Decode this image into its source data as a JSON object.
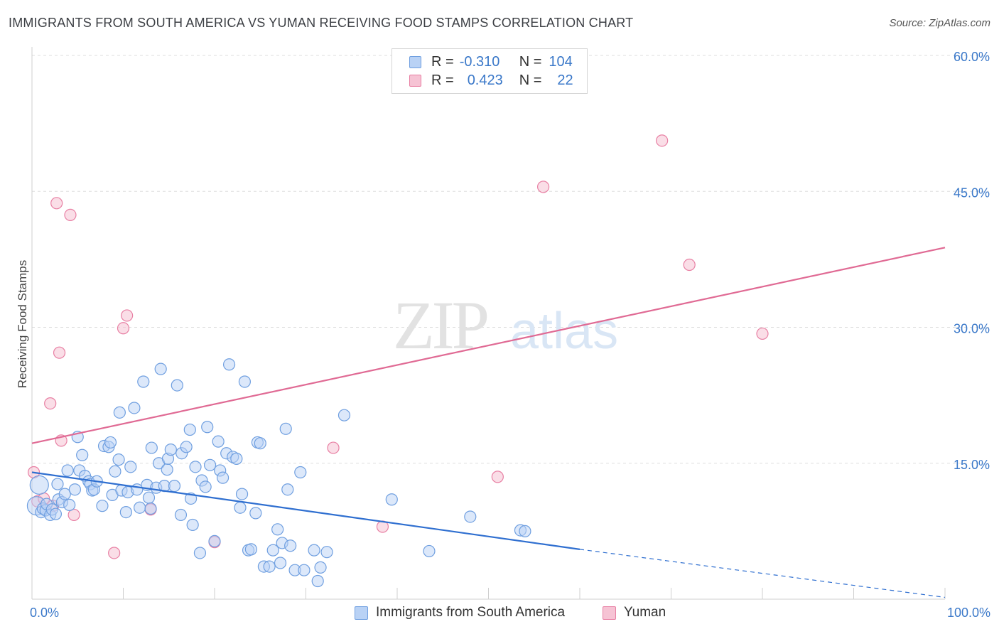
{
  "title": "IMMIGRANTS FROM SOUTH AMERICA VS YUMAN RECEIVING FOOD STAMPS CORRELATION CHART",
  "source": "Source: ZipAtlas.com",
  "watermark": {
    "zip": "ZIP",
    "atlas": "atlas"
  },
  "colors": {
    "blue": "#6f9fe0",
    "blue_fill": "#b9d2f5",
    "blue_line": "#2f6fd0",
    "pink": "#e87fa3",
    "pink_fill": "#f6c3d4",
    "pink_line": "#e06a94",
    "axis_text": "#3a78c9",
    "grid": "#dddddd"
  },
  "legend": {
    "rows": [
      {
        "r_label": "R =",
        "r_value": "-0.310",
        "n_label": "N =",
        "n_value": "104"
      },
      {
        "r_label": "R =",
        "r_value": "0.423",
        "n_label": "N =",
        "n_value": "22"
      }
    ]
  },
  "bottom_legend": [
    "Immigrants from South America",
    "Yuman"
  ],
  "chart_data": {
    "type": "scatter",
    "title": "IMMIGRANTS FROM SOUTH AMERICA VS YUMAN RECEIVING FOOD STAMPS CORRELATION CHART",
    "xlabel": "",
    "ylabel": "Receiving Food Stamps",
    "xlim": [
      0,
      100
    ],
    "ylim": [
      0,
      60
    ],
    "x_tick_labels": [
      "0.0%",
      "100.0%"
    ],
    "y_ticks": [
      15,
      30,
      45,
      60
    ],
    "y_tick_labels": [
      "15.0%",
      "30.0%",
      "45.0%",
      "60.0%"
    ],
    "grid": true,
    "legend_position": "top-center",
    "series": [
      {
        "name": "Immigrants from South America",
        "r": -0.31,
        "n": 104,
        "trend": {
          "x0": 0,
          "y0": 14.0,
          "x1": 60,
          "y1": 5.5,
          "dash_to_x": 100,
          "dash_to_y": 0.2
        },
        "points": [
          [
            0.5,
            10.3
          ],
          [
            0.8,
            12.6
          ],
          [
            1.0,
            9.6
          ],
          [
            1.2,
            10.0
          ],
          [
            1.5,
            9.8
          ],
          [
            1.6,
            10.5
          ],
          [
            2.0,
            9.3
          ],
          [
            2.2,
            9.9
          ],
          [
            2.6,
            9.4
          ],
          [
            2.8,
            12.7
          ],
          [
            2.9,
            11.0
          ],
          [
            3.3,
            10.7
          ],
          [
            3.6,
            11.6
          ],
          [
            3.9,
            14.2
          ],
          [
            4.1,
            10.4
          ],
          [
            4.7,
            12.1
          ],
          [
            5.0,
            17.9
          ],
          [
            5.2,
            14.2
          ],
          [
            5.5,
            15.9
          ],
          [
            5.8,
            13.6
          ],
          [
            6.2,
            13.0
          ],
          [
            6.4,
            12.7
          ],
          [
            6.6,
            12.0
          ],
          [
            6.8,
            12.1
          ],
          [
            7.1,
            13.0
          ],
          [
            7.7,
            10.3
          ],
          [
            7.9,
            16.9
          ],
          [
            8.4,
            16.8
          ],
          [
            8.6,
            17.3
          ],
          [
            8.8,
            11.5
          ],
          [
            9.1,
            14.1
          ],
          [
            9.5,
            15.4
          ],
          [
            9.6,
            20.6
          ],
          [
            9.8,
            12.0
          ],
          [
            10.3,
            9.6
          ],
          [
            10.5,
            11.8
          ],
          [
            10.8,
            14.6
          ],
          [
            11.2,
            21.1
          ],
          [
            11.5,
            12.1
          ],
          [
            11.8,
            10.1
          ],
          [
            12.2,
            24.0
          ],
          [
            12.6,
            12.6
          ],
          [
            12.8,
            11.2
          ],
          [
            13.0,
            10.0
          ],
          [
            13.1,
            16.7
          ],
          [
            13.6,
            12.3
          ],
          [
            13.9,
            15.0
          ],
          [
            14.1,
            25.4
          ],
          [
            14.5,
            12.5
          ],
          [
            14.8,
            14.3
          ],
          [
            14.9,
            15.5
          ],
          [
            15.2,
            16.5
          ],
          [
            15.6,
            12.5
          ],
          [
            15.9,
            23.6
          ],
          [
            16.3,
            9.3
          ],
          [
            16.4,
            16.1
          ],
          [
            16.9,
            16.8
          ],
          [
            17.3,
            18.7
          ],
          [
            17.4,
            11.1
          ],
          [
            17.6,
            8.2
          ],
          [
            17.9,
            14.6
          ],
          [
            18.4,
            5.1
          ],
          [
            18.6,
            13.1
          ],
          [
            19.0,
            12.4
          ],
          [
            19.2,
            19.0
          ],
          [
            19.5,
            14.8
          ],
          [
            20.0,
            6.4
          ],
          [
            20.4,
            17.4
          ],
          [
            20.6,
            14.2
          ],
          [
            20.9,
            13.4
          ],
          [
            21.3,
            16.1
          ],
          [
            21.6,
            25.9
          ],
          [
            22.0,
            15.7
          ],
          [
            22.4,
            15.5
          ],
          [
            22.8,
            10.1
          ],
          [
            23.0,
            11.6
          ],
          [
            23.3,
            24.0
          ],
          [
            23.7,
            5.4
          ],
          [
            24.0,
            5.5
          ],
          [
            24.5,
            9.5
          ],
          [
            24.7,
            17.3
          ],
          [
            25.0,
            17.2
          ],
          [
            25.4,
            3.6
          ],
          [
            26.0,
            3.6
          ],
          [
            26.4,
            5.4
          ],
          [
            26.9,
            7.7
          ],
          [
            27.2,
            4.0
          ],
          [
            27.4,
            6.2
          ],
          [
            27.8,
            18.8
          ],
          [
            28.0,
            12.1
          ],
          [
            28.3,
            5.9
          ],
          [
            28.8,
            3.2
          ],
          [
            29.4,
            14.0
          ],
          [
            29.8,
            3.2
          ],
          [
            30.9,
            5.4
          ],
          [
            31.3,
            2.0
          ],
          [
            31.6,
            3.5
          ],
          [
            32.3,
            5.2
          ],
          [
            34.2,
            20.3
          ],
          [
            39.4,
            11.0
          ],
          [
            43.5,
            5.3
          ],
          [
            48.0,
            9.1
          ],
          [
            53.5,
            7.6
          ],
          [
            54.0,
            7.5
          ]
        ]
      },
      {
        "name": "Yuman",
        "r": 0.423,
        "n": 22,
        "trend": {
          "x0": 0,
          "y0": 17.2,
          "x1": 100,
          "y1": 38.8
        },
        "points": [
          [
            0.2,
            14.0
          ],
          [
            0.6,
            10.8
          ],
          [
            1.3,
            11.1
          ],
          [
            2.0,
            21.6
          ],
          [
            2.3,
            10.3
          ],
          [
            2.7,
            43.7
          ],
          [
            3.0,
            27.2
          ],
          [
            3.2,
            17.5
          ],
          [
            4.2,
            42.4
          ],
          [
            4.6,
            9.3
          ],
          [
            9.0,
            5.1
          ],
          [
            10.0,
            29.9
          ],
          [
            10.4,
            31.3
          ],
          [
            13.0,
            9.9
          ],
          [
            20.0,
            6.3
          ],
          [
            33.0,
            16.7
          ],
          [
            38.4,
            8.0
          ],
          [
            51.0,
            13.5
          ],
          [
            56.0,
            45.5
          ],
          [
            69.0,
            50.6
          ],
          [
            72.0,
            36.9
          ],
          [
            80.0,
            29.3
          ]
        ]
      }
    ]
  }
}
